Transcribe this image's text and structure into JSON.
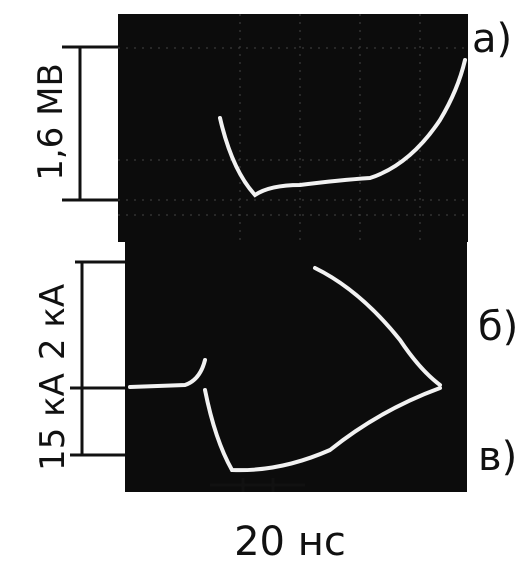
{
  "labels": {
    "a": "а)",
    "b": "б)",
    "c": "в)"
  },
  "scales": {
    "voltage": "1,6 МВ",
    "current_b": "2 кА",
    "current_c": "15 кА",
    "time": "20 нс"
  }
}
